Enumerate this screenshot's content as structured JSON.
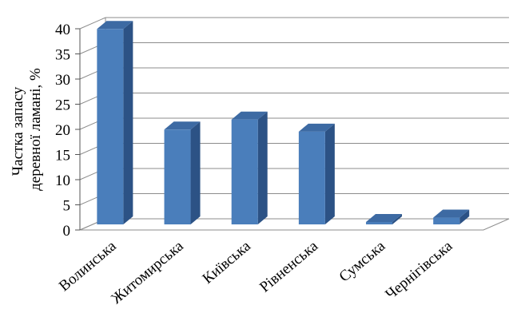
{
  "chart_data": {
    "type": "bar",
    "style": "3d-column",
    "title": "",
    "xlabel": "",
    "ylabel_lines": [
      "Частка запасу",
      "деревної ламані, %"
    ],
    "categories": [
      "Волинська",
      "Житомирська",
      "Київська",
      "Рівненська",
      "Сумська",
      "Чернігівська"
    ],
    "values": [
      39,
      19,
      21,
      18.6,
      0.3,
      1.5
    ],
    "ylim": [
      0,
      40
    ],
    "yticks": [
      0,
      5,
      10,
      15,
      20,
      25,
      30,
      35,
      40
    ],
    "grid": true,
    "legend": "none",
    "colors": {
      "bar_front": "#4a7ebb",
      "bar_side": "#2c5285",
      "bar_top": "#3d6aa3",
      "grid": "#8c8c8c"
    }
  }
}
